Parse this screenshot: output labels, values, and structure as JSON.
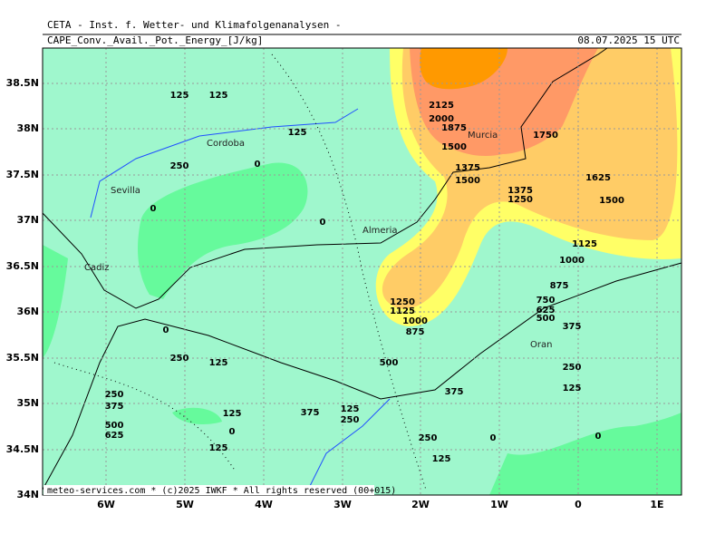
{
  "header": {
    "institute": "CETA - Inst. f. Wetter- und Klimafolgenanalysen -",
    "field": "CAPE_Conv._Avail._Pot._Energy_[J/kg]",
    "valid_time": "08.07.2025 15 UTC"
  },
  "axes": {
    "longitude_labels": [
      "6W",
      "5W",
      "4W",
      "3W",
      "2W",
      "1W",
      "0",
      "1E"
    ],
    "latitude_labels": [
      "38.5N",
      "38N",
      "37.5N",
      "37N",
      "36.5N",
      "36N",
      "35.5N",
      "35N",
      "34.5N",
      "34N"
    ]
  },
  "cities": [
    "Sevilla",
    "Cordoba",
    "Almeria",
    "Murcia",
    "Cadiz",
    "Oran"
  ],
  "contour_labels": [
    125,
    125,
    125,
    250,
    0,
    0,
    0,
    2125,
    2000,
    1875,
    1500,
    1750,
    1375,
    1500,
    1625,
    1375,
    1250,
    1500,
    1125,
    1000,
    875,
    750,
    625,
    500,
    375,
    1250,
    1125,
    1000,
    875,
    0,
    250,
    125,
    500,
    375,
    250,
    125,
    250,
    375,
    125,
    375,
    125,
    250,
    500,
    625,
    0,
    125,
    250,
    0,
    0,
    125
  ],
  "footer": "meteo-services.com * (c)2025 IWKF * All rights reserved (00+015)"
}
